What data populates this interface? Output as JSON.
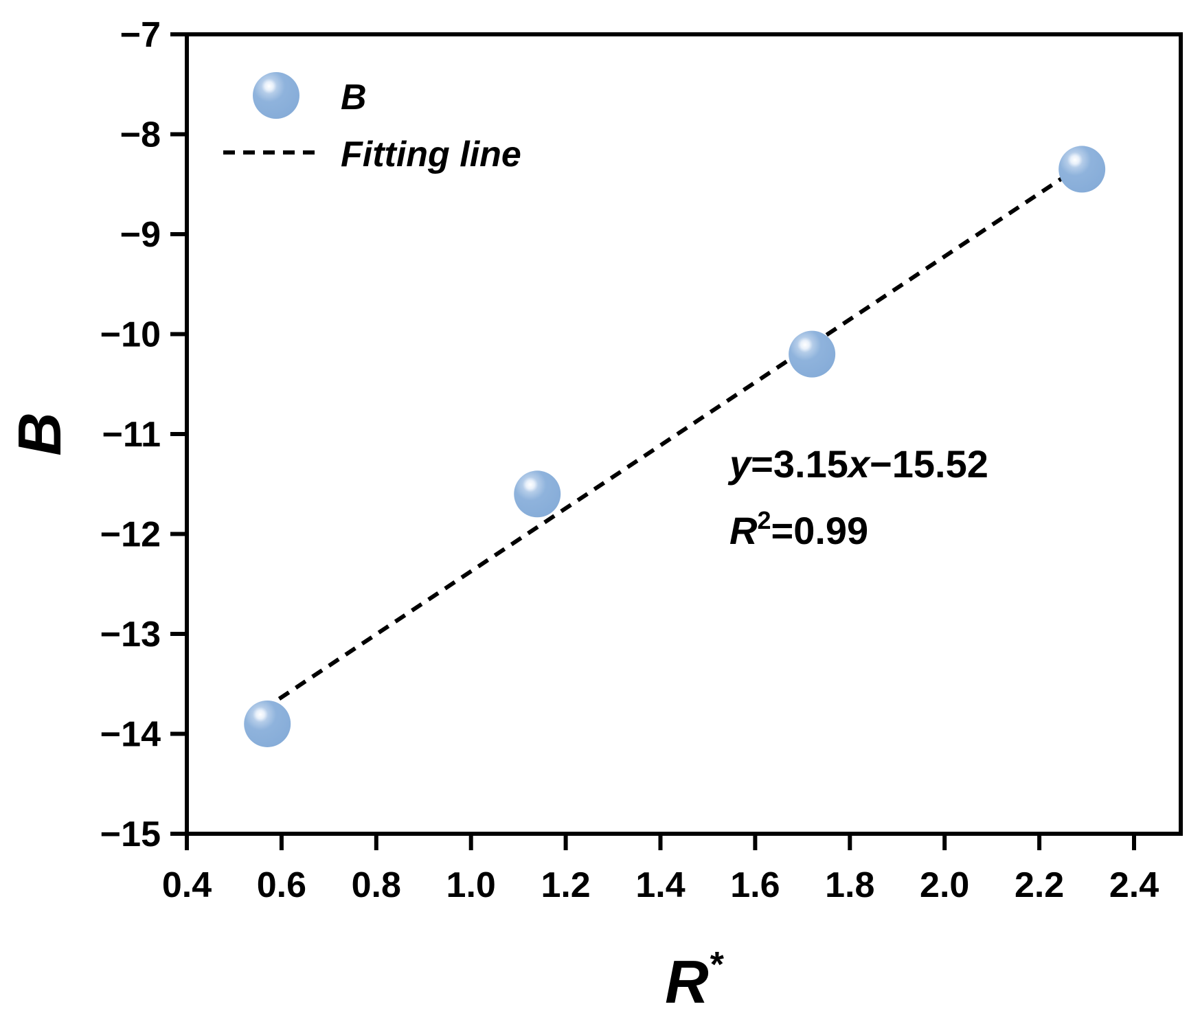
{
  "chart_data": {
    "type": "scatter",
    "xlabel": "R",
    "xlabel_superscript": "*",
    "ylabel": "B",
    "xlim": [
      0.4,
      2.45
    ],
    "ylim": [
      -15,
      -7
    ],
    "xticks": [
      0.4,
      0.6,
      0.8,
      1.0,
      1.2,
      1.4,
      1.6,
      1.8,
      2.0,
      2.2,
      2.4
    ],
    "xtick_labels": [
      "0.4",
      "0.6",
      "0.8",
      "1.0",
      "1.2",
      "1.4",
      "1.6",
      "1.8",
      "2.0",
      "2.2",
      "2.4"
    ],
    "yticks": [
      -7,
      -8,
      -9,
      -10,
      -11,
      -12,
      -13,
      -14,
      -15
    ],
    "ytick_labels": [
      "−7",
      "−8",
      "−9",
      "−10",
      "−11",
      "−12",
      "−13",
      "−14",
      "−15"
    ],
    "grid": false,
    "legend_position": "top-left",
    "series": [
      {
        "name": "B",
        "kind": "scatter",
        "color": "#8fb3dc",
        "x": [
          0.57,
          1.14,
          1.72,
          2.29
        ],
        "y": [
          -13.9,
          -11.6,
          -10.2,
          -8.35
        ]
      },
      {
        "name": "Fitting line",
        "kind": "line",
        "style": "dashed",
        "color": "#000000",
        "x": [
          0.56,
          2.28
        ],
        "y": [
          -13.76,
          -8.34
        ]
      }
    ],
    "annotations": {
      "equation": {
        "y_var": "y",
        "equals_slope": "=3.15",
        "x_var": "x",
        "intercept": "−15.52"
      },
      "r_squared": {
        "r": "R",
        "exponent": "2",
        "value": "=0.99"
      }
    }
  }
}
